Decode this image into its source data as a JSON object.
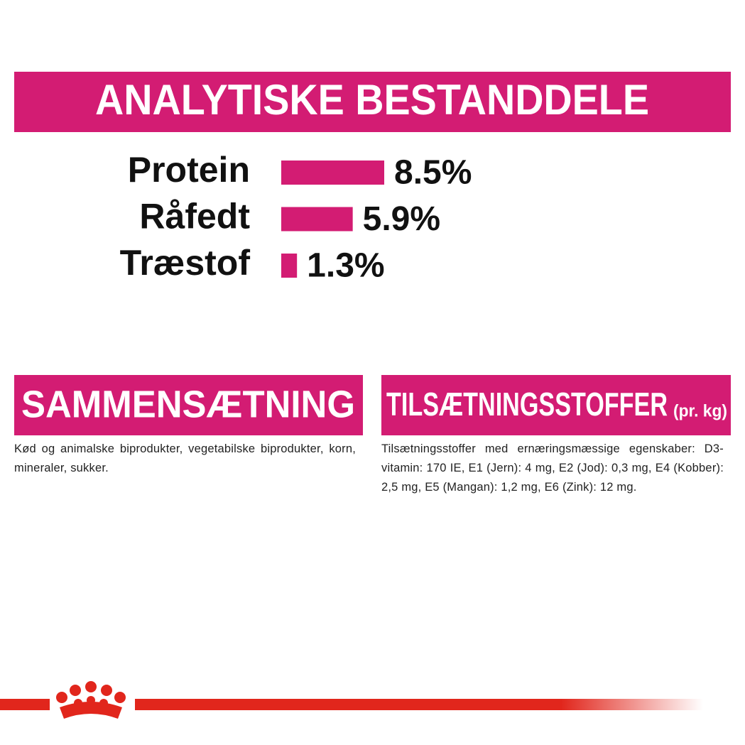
{
  "chart_data": {
    "type": "hbar",
    "title": "ANALYTISKE BESTANDDELE",
    "categories": [
      "Protein",
      "Råfedt",
      "Træstof"
    ],
    "values": [
      8.5,
      5.9,
      1.3
    ],
    "value_labels": [
      "8.5%",
      "5.9%",
      "1.3%"
    ],
    "color": "#d31c73"
  },
  "composition": {
    "title": "SAMMENSÆTNING",
    "text": "Kød og animalske biprodukter, vegetabilske biprodukter, korn, mineraler, sukker."
  },
  "additives": {
    "title": "TILSÆTNINGSSTOFFER",
    "title_suffix": "(pr. kg)",
    "text": "Tilsætningsstoffer med ernæringsmæssige egenskaber: D3-vitamin: 170 IE, E1 (Jern): 4 mg, E2 (Jod): 0,3 mg, E4 (Kobber): 2,5 mg, E5 (Mangan): 1,2 mg, E6 (Zink): 12 mg."
  }
}
